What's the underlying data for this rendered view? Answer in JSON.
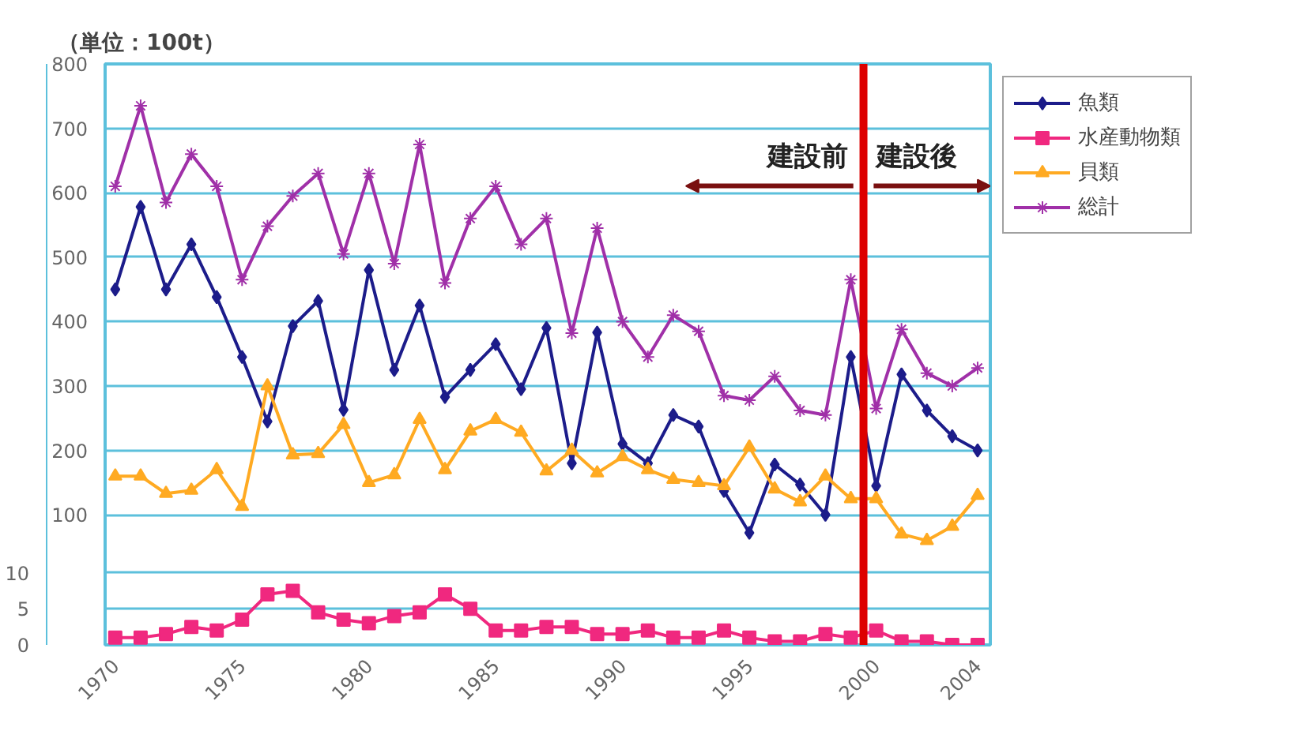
{
  "chart_data": {
    "type": "line",
    "ylabel": "（単位：100t）",
    "x": [
      1970,
      1971,
      1972,
      1973,
      1974,
      1975,
      1976,
      1977,
      1978,
      1979,
      1980,
      1981,
      1982,
      1983,
      1984,
      1985,
      1986,
      1987,
      1988,
      1989,
      1990,
      1991,
      1992,
      1993,
      1994,
      1995,
      1996,
      1997,
      1998,
      1999,
      2000,
      2001,
      2002,
      2003,
      2004
    ],
    "xlim": [
      1969.6,
      2004.5
    ],
    "xticks": [
      1970,
      1975,
      1980,
      1985,
      1990,
      1995,
      2000,
      2004
    ],
    "ylim": [
      -102,
      800
    ],
    "yticks": [
      100,
      200,
      300,
      400,
      500,
      600,
      700,
      800
    ],
    "y2lim": [
      0,
      80.5
    ],
    "y2ticks": [
      0,
      5,
      10
    ],
    "grid": "y",
    "legend": "top right",
    "series": [
      {
        "name": "魚類",
        "color": "#1c1c8a",
        "marker": "diamond",
        "values": [
          450,
          578,
          450,
          520,
          438,
          345,
          245,
          393,
          432,
          263,
          480,
          325,
          425,
          283,
          325,
          365,
          295,
          390,
          180,
          383,
          210,
          180,
          255,
          237,
          137,
          72,
          178,
          147,
          100,
          345,
          145,
          318,
          262,
          222,
          200
        ]
      },
      {
        "name": "水産動物類",
        "color": "#f0287f",
        "marker": "square",
        "axis": "y2",
        "values": [
          1,
          1,
          1.5,
          2.5,
          2,
          3.5,
          7,
          7.5,
          4.5,
          3.5,
          3,
          4,
          4.5,
          7,
          5,
          2,
          2,
          2.5,
          2.5,
          1.5,
          1.5,
          2,
          1,
          1,
          2,
          1,
          0.5,
          0.5,
          1.5,
          1,
          2,
          0.5,
          0.5,
          0,
          0
        ]
      },
      {
        "name": "貝類",
        "color": "#ffaa22",
        "marker": "triangle",
        "values": [
          160,
          160,
          133,
          138,
          170,
          113,
          300,
          193,
          195,
          240,
          150,
          162,
          248,
          170,
          230,
          248,
          228,
          168,
          200,
          165,
          190,
          170,
          155,
          150,
          145,
          205,
          140,
          120,
          160,
          125,
          125,
          70,
          60,
          82,
          130
        ]
      },
      {
        "name": "総計",
        "color": "#a030a8",
        "marker": "cross",
        "values": [
          610,
          735,
          585,
          660,
          610,
          465,
          548,
          595,
          630,
          505,
          630,
          490,
          675,
          460,
          560,
          610,
          520,
          560,
          382,
          545,
          400,
          345,
          410,
          385,
          285,
          278,
          315,
          262,
          255,
          465,
          265,
          388,
          320,
          300,
          328
        ]
      }
    ],
    "ref_lines": [
      {
        "axis": "x",
        "value": 1999.5,
        "color": "#dd0000"
      }
    ],
    "annotations": [
      "建設前",
      "建設後"
    ]
  }
}
